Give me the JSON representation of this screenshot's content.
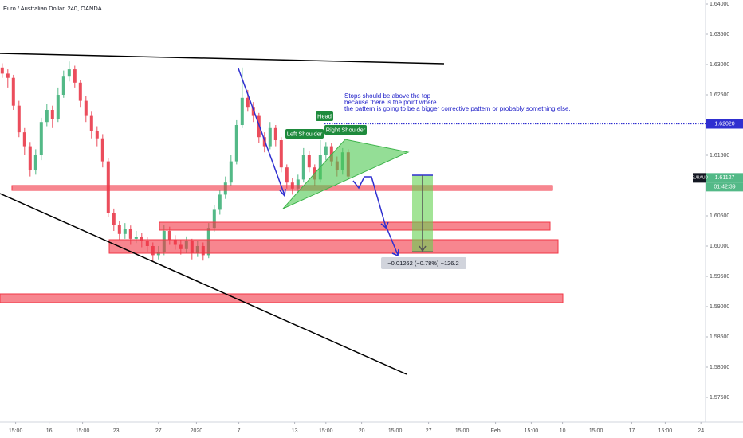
{
  "chart_data": {
    "type": "candlestick",
    "title": "Euro / Australian Dollar, 240, OANDA",
    "symbol": "EURAUD",
    "countdown": "01:42:39",
    "up_color": "#53b987",
    "down_color": "#eb4d5c",
    "x": [
      1,
      3.5,
      6,
      8.5,
      11,
      13.5,
      16,
      18.5,
      21,
      23.5,
      26,
      28.5,
      31,
      33.5,
      36,
      38.5,
      41,
      43.5,
      46,
      48.5,
      51,
      53.5,
      56,
      58.5,
      61,
      63.5,
      66,
      68.5,
      71,
      73.5,
      76,
      78.5,
      81,
      83.5,
      86,
      88.5,
      91,
      93.5,
      96,
      98.5,
      101,
      103.5,
      106,
      108.5,
      111,
      113.5,
      116,
      118.5,
      121,
      123.5,
      126,
      128.5,
      131,
      133.5,
      136,
      138.5,
      141,
      143.5,
      146,
      148.5,
      151,
      153.5,
      156
    ],
    "open": [
      1.6295,
      1.6285,
      1.6278,
      1.6232,
      1.6188,
      1.6165,
      1.6125,
      1.615,
      1.6205,
      1.6225,
      1.621,
      1.625,
      1.628,
      1.6292,
      1.627,
      1.624,
      1.6215,
      1.619,
      1.6178,
      1.614,
      1.6055,
      1.6035,
      1.602,
      1.6028,
      1.6012,
      1.6015,
      1.6008,
      1.6,
      1.5985,
      1.599,
      1.6025,
      1.601,
      1.6002,
      1.5995,
      1.6008,
      1.5988,
      1.6,
      1.5985,
      1.603,
      1.606,
      1.6085,
      1.6105,
      1.614,
      1.62,
      1.6245,
      1.623,
      1.6215,
      1.618,
      1.6165,
      1.6195,
      1.6175,
      1.613,
      1.6105,
      1.6095,
      1.611,
      1.615,
      1.613,
      1.611,
      1.615,
      1.6165,
      1.614,
      1.6125,
      1.6155
    ],
    "high": [
      1.6302,
      1.6292,
      1.6283,
      1.624,
      1.6195,
      1.6172,
      1.616,
      1.6212,
      1.6235,
      1.6232,
      1.6262,
      1.629,
      1.6305,
      1.6298,
      1.6275,
      1.6248,
      1.6222,
      1.6198,
      1.6185,
      1.6145,
      1.6062,
      1.6042,
      1.6038,
      1.6034,
      1.6025,
      1.6022,
      1.6015,
      1.6006,
      1.6,
      1.6035,
      1.6032,
      1.6018,
      1.601,
      1.6016,
      1.6012,
      1.6008,
      1.6006,
      1.6038,
      1.6068,
      1.6092,
      1.6115,
      1.615,
      1.6208,
      1.6295,
      1.6258,
      1.6238,
      1.622,
      1.6188,
      1.6205,
      1.62,
      1.618,
      1.6135,
      1.6112,
      1.6118,
      1.6162,
      1.6158,
      1.6135,
      1.6175,
      1.6172,
      1.617,
      1.6148,
      1.6162,
      1.616
    ],
    "low": [
      1.6278,
      1.6262,
      1.6225,
      1.618,
      1.615,
      1.6115,
      1.6118,
      1.6142,
      1.6198,
      1.6195,
      1.6205,
      1.6245,
      1.6272,
      1.6262,
      1.623,
      1.6205,
      1.6178,
      1.6165,
      1.613,
      1.6048,
      1.6025,
      1.601,
      1.6012,
      1.6002,
      1.6005,
      1.5998,
      1.599,
      1.5975,
      1.5978,
      1.5985,
      1.6002,
      1.5994,
      1.5986,
      1.5988,
      1.5978,
      1.5982,
      1.5976,
      1.598,
      1.6024,
      1.6052,
      1.6078,
      1.61,
      1.6135,
      1.6195,
      1.6222,
      1.6205,
      1.617,
      1.6155,
      1.616,
      1.6165,
      1.6122,
      1.6095,
      1.6085,
      1.6088,
      1.6105,
      1.6122,
      1.61,
      1.6105,
      1.6142,
      1.6132,
      1.6115,
      1.6118,
      1.611
    ],
    "close": [
      1.6285,
      1.6278,
      1.6232,
      1.6188,
      1.6165,
      1.6125,
      1.615,
      1.6205,
      1.6225,
      1.621,
      1.625,
      1.628,
      1.6292,
      1.627,
      1.624,
      1.6215,
      1.619,
      1.6178,
      1.614,
      1.6055,
      1.6035,
      1.602,
      1.6028,
      1.6012,
      1.6015,
      1.6008,
      1.6,
      1.5985,
      1.599,
      1.6025,
      1.601,
      1.6002,
      1.5995,
      1.6008,
      1.5988,
      1.6,
      1.5985,
      1.603,
      1.606,
      1.6085,
      1.6105,
      1.614,
      1.62,
      1.6245,
      1.623,
      1.6215,
      1.618,
      1.6165,
      1.6195,
      1.6175,
      1.613,
      1.6105,
      1.6095,
      1.611,
      1.615,
      1.613,
      1.611,
      1.615,
      1.6165,
      1.614,
      1.6125,
      1.6155,
      1.6115
    ],
    "xlim": [
      0,
      316.07
    ],
    "xticks": [
      {
        "value": 7,
        "label": "15:00"
      },
      {
        "value": 22,
        "label": "16"
      },
      {
        "value": 37,
        "label": "15:00"
      },
      {
        "value": 52,
        "label": "23"
      },
      {
        "value": 71,
        "label": "27"
      },
      {
        "value": 88,
        "label": "2020"
      },
      {
        "value": 107,
        "label": "7"
      },
      {
        "value": 132,
        "label": "13"
      },
      {
        "value": 146,
        "label": "15:00"
      },
      {
        "value": 162,
        "label": "20"
      },
      {
        "value": 177,
        "label": "15:00"
      },
      {
        "value": 192,
        "label": "27"
      },
      {
        "value": 207,
        "label": "15:00"
      },
      {
        "value": 222,
        "label": "Feb"
      },
      {
        "value": 238,
        "label": "15:00"
      },
      {
        "value": 252,
        "label": "10"
      },
      {
        "value": 267,
        "label": "15:00"
      },
      {
        "value": 283,
        "label": "17"
      },
      {
        "value": 298,
        "label": "15:00"
      },
      {
        "value": 314,
        "label": "24"
      }
    ],
    "ylim": [
      1.57092,
      1.64066
    ],
    "yticks": [
      {
        "value": 1.575,
        "label": "1.57500"
      },
      {
        "value": 1.58,
        "label": "1.58000"
      },
      {
        "value": 1.585,
        "label": "1.58500"
      },
      {
        "value": 1.59,
        "label": "1.59000"
      },
      {
        "value": 1.595,
        "label": "1.59500"
      },
      {
        "value": 1.6,
        "label": "1.60000"
      },
      {
        "value": 1.605,
        "label": "1.60500"
      },
      {
        "value": 1.61,
        "label": "1.61000"
      },
      {
        "value": 1.615,
        "label": "1.61500"
      },
      {
        "value": 1.62,
        "label": "1.62000"
      },
      {
        "value": 1.625,
        "label": "1.62500"
      },
      {
        "value": 1.63,
        "label": "1.63000"
      },
      {
        "value": 1.635,
        "label": "1.63500"
      },
      {
        "value": 1.64,
        "label": "1.64000"
      }
    ],
    "price_lines": [
      {
        "value": 1.6202,
        "label": "1.62020",
        "color": "#2f2fd0",
        "style": "dotted"
      },
      {
        "value": 1.61127,
        "label": "1.61127",
        "color": "#53b987",
        "style": "solid"
      }
    ],
    "annotations": {
      "note": [
        "Stops should be above the top",
        "because there is the point where",
        "the pattern is going to be a bigger corrective pattern or probably something else."
      ],
      "head": "Head",
      "left_shoulder": "Left Shoulder",
      "right_shoulder": "Right Shoulder",
      "measure": "−0.01262 (−0.78%) −126.2"
    }
  }
}
